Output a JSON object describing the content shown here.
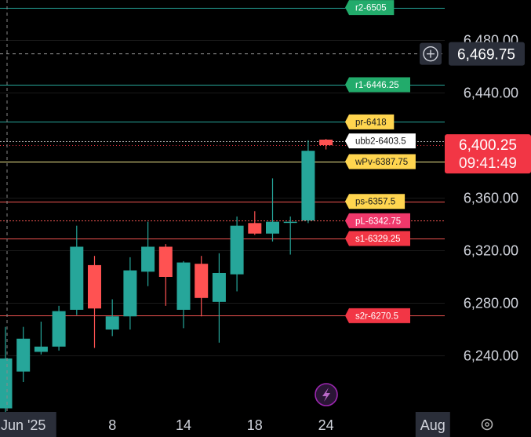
{
  "chart_data": {
    "type": "candlestick",
    "symbol_style": "dark",
    "y_axis": {
      "ticks": [
        {
          "value": 6480,
          "label": "6,480.00"
        },
        {
          "value": 6440,
          "label": "6,440.00"
        },
        {
          "value": 6360,
          "label": "6,360.00"
        },
        {
          "value": 6320,
          "label": "6,320.00"
        },
        {
          "value": 6280,
          "label": "6,280.00"
        },
        {
          "value": 6240,
          "label": "6,240.00"
        }
      ],
      "ylim": [
        6200,
        6512
      ]
    },
    "x_axis": {
      "ticks": [
        {
          "index": 1,
          "label": "Jun '25",
          "highlight": true
        },
        {
          "index": 6,
          "label": "8"
        },
        {
          "index": 10,
          "label": "14"
        },
        {
          "index": 14,
          "label": "18"
        },
        {
          "index": 18,
          "label": "24"
        },
        {
          "index": 24,
          "label": "Aug",
          "highlight": true
        }
      ]
    },
    "candles": [
      {
        "o": 6200,
        "h": 6262,
        "l": 6196,
        "c": 6238
      },
      {
        "o": 6228,
        "h": 6262,
        "l": 6220,
        "c": 6253
      },
      {
        "o": 6243,
        "h": 6266,
        "l": 6241,
        "c": 6247
      },
      {
        "o": 6247,
        "h": 6278,
        "l": 6244,
        "c": 6274
      },
      {
        "o": 6275,
        "h": 6339,
        "l": 6271,
        "c": 6323
      },
      {
        "o": 6309,
        "h": 6316,
        "l": 6246,
        "c": 6276
      },
      {
        "o": 6260,
        "h": 6283,
        "l": 6255,
        "c": 6270
      },
      {
        "o": 6270,
        "h": 6315,
        "l": 6260,
        "c": 6305
      },
      {
        "o": 6304,
        "h": 6342,
        "l": 6293,
        "c": 6323
      },
      {
        "o": 6323,
        "h": 6325,
        "l": 6278,
        "c": 6300
      },
      {
        "o": 6275,
        "h": 6312,
        "l": 6261,
        "c": 6311
      },
      {
        "o": 6310,
        "h": 6316,
        "l": 6270,
        "c": 6284
      },
      {
        "o": 6281,
        "h": 6318,
        "l": 6250,
        "c": 6303
      },
      {
        "o": 6302,
        "h": 6346,
        "l": 6289,
        "c": 6339
      },
      {
        "o": 6341,
        "h": 6350,
        "l": 6332,
        "c": 6333
      },
      {
        "o": 6333,
        "h": 6375,
        "l": 6327,
        "c": 6342
      },
      {
        "o": 6342,
        "h": 6346,
        "l": 6317,
        "c": 6342
      },
      {
        "o": 6343,
        "h": 6404,
        "l": 6341,
        "c": 6396
      },
      {
        "o": 6404.5,
        "h": 6405,
        "l": 6397,
        "c": 6400.25
      }
    ],
    "levels": [
      {
        "label": "r2-6505",
        "value": 6505,
        "line_color": "#26a69a",
        "tag_bg": "#22ab6b",
        "text_color": "#ffffff",
        "style": "solid"
      },
      {
        "label": "r1-6446.25",
        "value": 6446.25,
        "line_color": "#26a69a",
        "tag_bg": "#22ab6b",
        "text_color": "#ffffff",
        "style": "solid"
      },
      {
        "label": "pr-6418",
        "value": 6418,
        "line_color": "#26a69a",
        "tag_bg": "#ffd54f",
        "text_color": "#1b1b1b",
        "style": "solid"
      },
      {
        "label": "ubb2-6403.5",
        "value": 6403.5,
        "line_color": "#b0b0b0",
        "tag_bg": "#ffffff",
        "text_color": "#1b1b1b",
        "style": "dotted"
      },
      {
        "label": "wPv-6387.75",
        "value": 6387.75,
        "line_color": "#f0e68c",
        "tag_bg": "#ffd54f",
        "text_color": "#1b1b1b",
        "style": "solid"
      },
      {
        "label": "ps-6357.5",
        "value": 6357.5,
        "line_color": "#ef5350",
        "tag_bg": "#ffd54f",
        "text_color": "#1b1b1b",
        "style": "solid"
      },
      {
        "label": "pL-6342.75",
        "value": 6342.75,
        "line_color": "#ef5350",
        "tag_bg": "#f0386b",
        "text_color": "#ffffff",
        "style": "dotted"
      },
      {
        "label": "s1-6329.25",
        "value": 6329.25,
        "line_color": "#ef5350",
        "tag_bg": "#f23645",
        "text_color": "#ffffff",
        "style": "solid"
      },
      {
        "label": "s2r-6270.5",
        "value": 6270.5,
        "line_color": "#ef5350",
        "tag_bg": "#f23645",
        "text_color": "#ffffff",
        "style": "solid"
      }
    ],
    "crosshair": {
      "value": 6469.75,
      "label": "6,469.75"
    },
    "last_price": {
      "value": 6400.25,
      "label": "6,400.25",
      "countdown": "09:41:49",
      "color": "#f23645"
    },
    "colors": {
      "up": "#26a69a",
      "down": "#ff5252",
      "background": "#000000",
      "grid": "#1a1a1a",
      "axis_text": "#d1d4dc"
    }
  },
  "icons": {
    "crosshair_add": "plus-circle-icon",
    "lightning": "lightning-icon",
    "settings": "gear-icon"
  }
}
